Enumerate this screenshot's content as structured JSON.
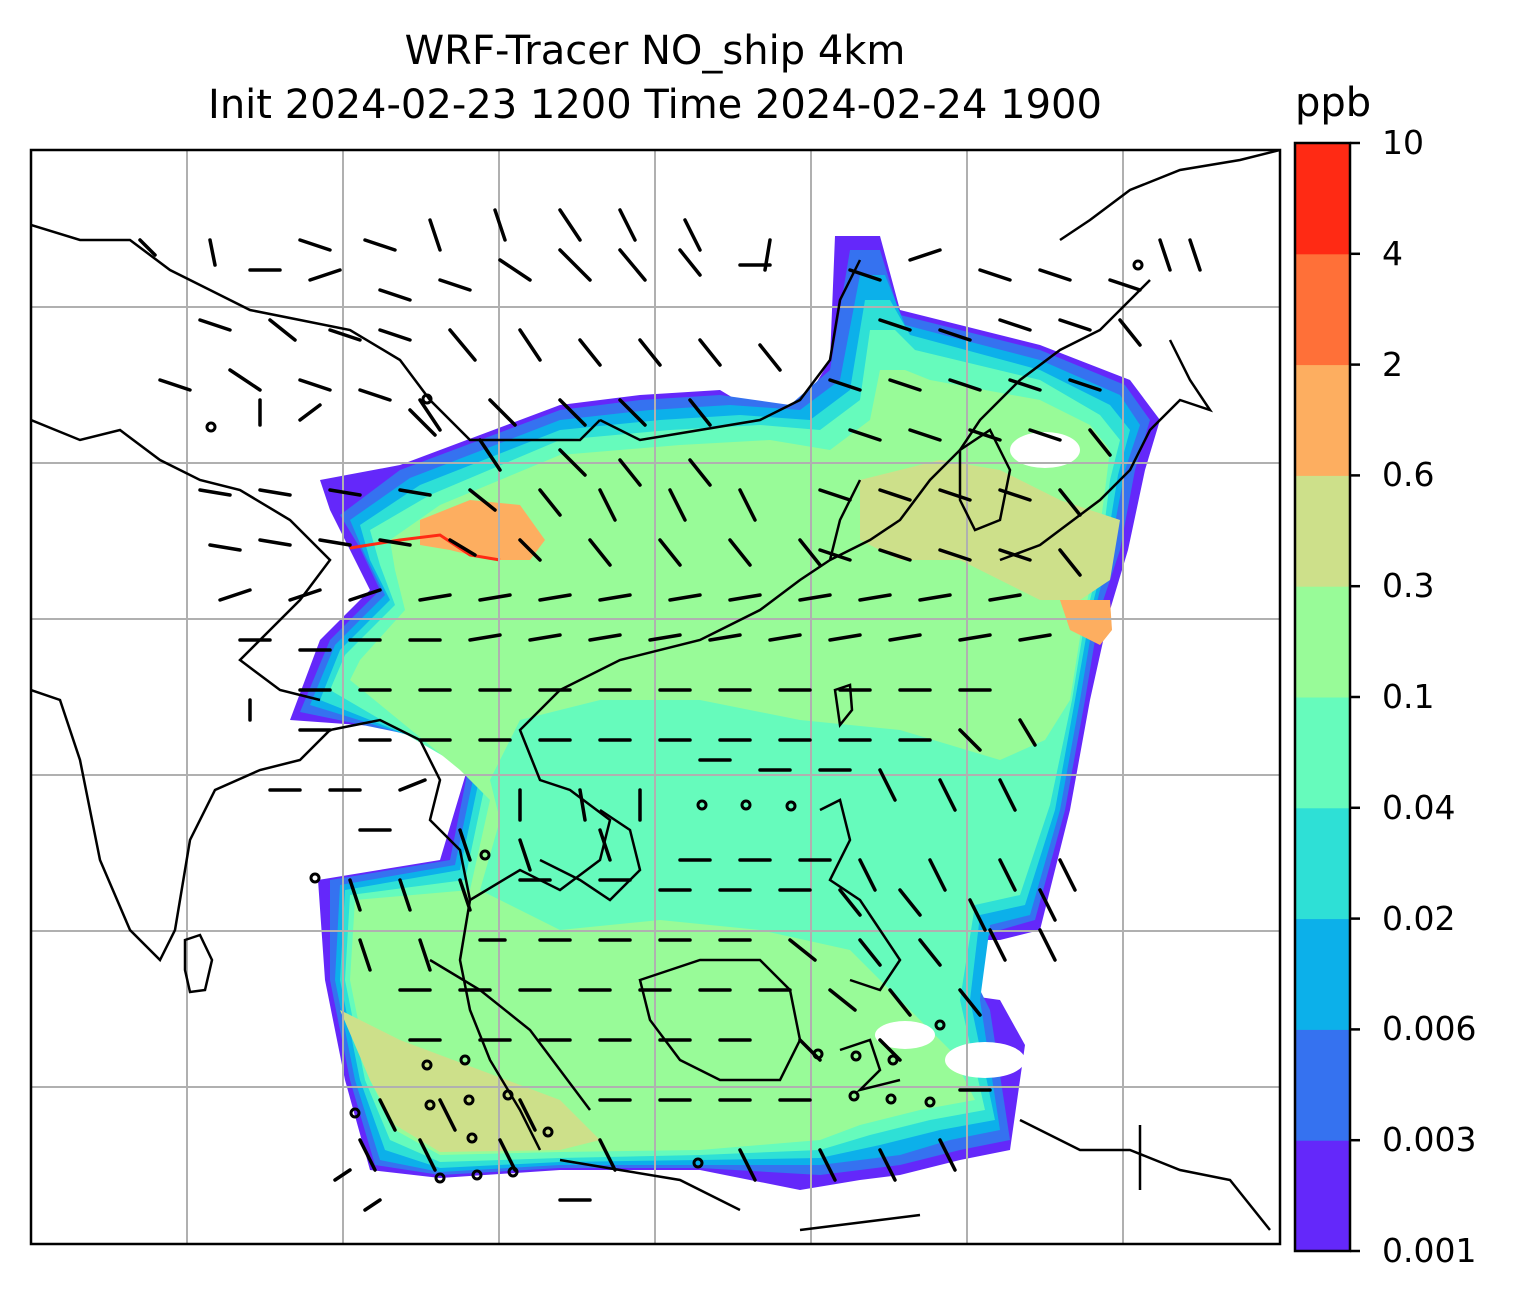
{
  "title": {
    "line1": "WRF-Tracer NO_ship 4km",
    "line2": "Init 2024-02-23 1200 Time 2024-02-24 1900"
  },
  "colorbar": {
    "unit": "ppb",
    "levels": [
      "0.001",
      "0.003",
      "0.006",
      "0.02",
      "0.04",
      "0.1",
      "0.3",
      "0.6",
      "2",
      "4",
      "10"
    ],
    "colors": [
      "#6428fa",
      "#3572f0",
      "#0cb0ea",
      "#2ee0d6",
      "#66fbbc",
      "#98fb98",
      "#cde08a",
      "#fdae60",
      "#ff7038",
      "#ff2a14"
    ]
  },
  "map": {
    "gridlines": true,
    "field": "NO_ship tracer concentration",
    "overlay": "wind barbs",
    "background_color": "#ffffff",
    "coastline_color": "#000000",
    "grid_color": "#b0b0b0"
  }
}
